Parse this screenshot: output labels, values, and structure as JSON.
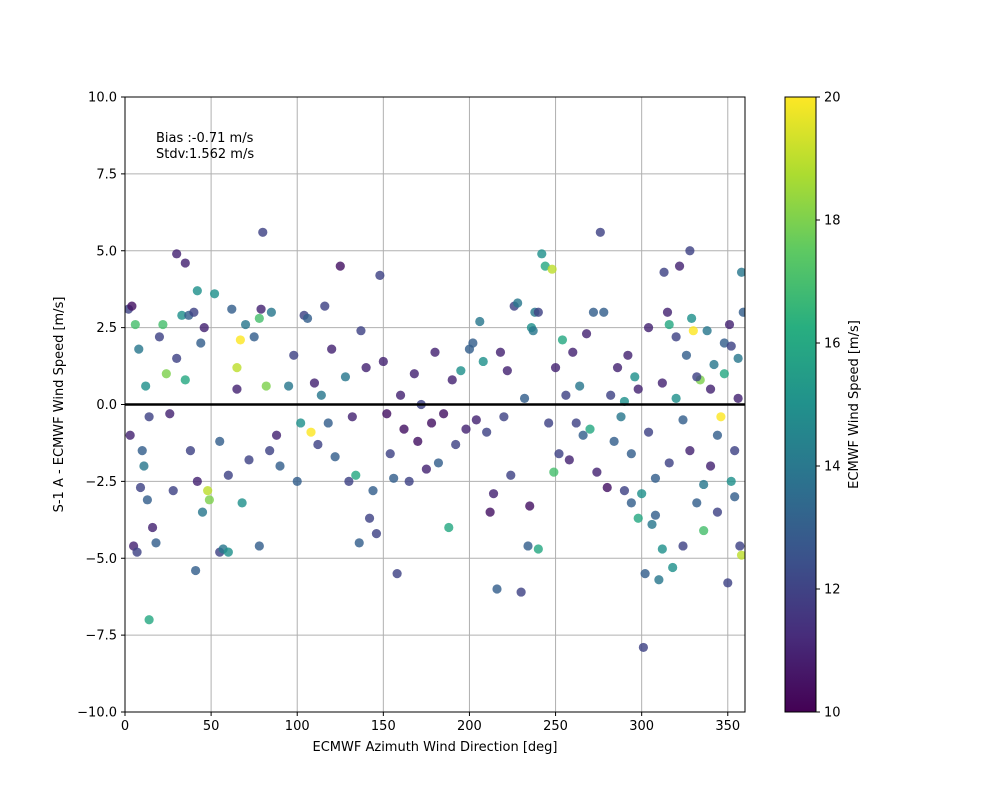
{
  "chart_data": {
    "type": "scatter",
    "title": "",
    "xlabel": "ECMWF Azimuth Wind Direction [deg]",
    "ylabel": "S-1 A - ECMWF Wind Speed [m/s]",
    "xlim": [
      0,
      360
    ],
    "ylim": [
      -10,
      10
    ],
    "grid": true,
    "x_ticks": [
      "0",
      "50",
      "100",
      "150",
      "200",
      "250",
      "300",
      "350"
    ],
    "y_ticks": [
      "10.0",
      "7.5",
      "5.0",
      "2.5",
      "0.0",
      "−2.5",
      "−5.0",
      "−7.5",
      "−10.0"
    ],
    "reference_line": {
      "y": 0,
      "color": "#000000"
    },
    "annotations": {
      "bias": "Bias :-0.71 m/s",
      "stdv": "Stdv:1.562 m/s"
    },
    "colorbar": {
      "label": "ECMWF Wind Speed [m/s]",
      "min": 10,
      "max": 20,
      "ticks": [
        "10",
        "12",
        "14",
        "16",
        "18",
        "20"
      ],
      "colormap": "viridis"
    },
    "points": [
      [
        2,
        3.1,
        12
      ],
      [
        4,
        3.2,
        10.5
      ],
      [
        6,
        2.6,
        17
      ],
      [
        8,
        1.8,
        14
      ],
      [
        5,
        -4.6,
        11
      ],
      [
        7,
        -4.8,
        12
      ],
      [
        10,
        -1.5,
        13
      ],
      [
        12,
        0.6,
        15
      ],
      [
        14,
        -0.4,
        12
      ],
      [
        3,
        -1.0,
        11
      ],
      [
        9,
        -2.7,
        12
      ],
      [
        11,
        -2.0,
        14
      ],
      [
        13,
        -3.1,
        13
      ],
      [
        14,
        -7.0,
        16
      ],
      [
        16,
        -4.0,
        11
      ],
      [
        18,
        -4.5,
        13
      ],
      [
        20,
        2.2,
        12
      ],
      [
        22,
        2.6,
        17
      ],
      [
        24,
        1.0,
        18
      ],
      [
        26,
        -0.3,
        11
      ],
      [
        28,
        -2.8,
        12
      ],
      [
        30,
        4.9,
        11
      ],
      [
        33,
        2.9,
        15
      ],
      [
        35,
        4.6,
        11
      ],
      [
        37,
        2.9,
        13
      ],
      [
        40,
        3.0,
        12
      ],
      [
        41,
        -5.4,
        13
      ],
      [
        42,
        3.7,
        15
      ],
      [
        44,
        2.0,
        13
      ],
      [
        46,
        2.5,
        11
      ],
      [
        48,
        -2.8,
        19
      ],
      [
        49,
        -3.1,
        18
      ],
      [
        52,
        3.6,
        15
      ],
      [
        55,
        -4.8,
        12
      ],
      [
        57,
        -4.7,
        14
      ],
      [
        60,
        -4.8,
        15
      ],
      [
        62,
        3.1,
        13
      ],
      [
        65,
        1.2,
        19
      ],
      [
        67,
        2.1,
        20
      ],
      [
        70,
        2.6,
        14
      ],
      [
        75,
        2.2,
        13
      ],
      [
        78,
        2.8,
        17
      ],
      [
        80,
        5.6,
        12
      ],
      [
        79,
        3.1,
        11
      ],
      [
        82,
        0.6,
        18
      ],
      [
        84,
        -1.5,
        12
      ],
      [
        78,
        -4.6,
        13
      ],
      [
        85,
        3.0,
        14
      ],
      [
        30,
        1.5,
        12
      ],
      [
        35,
        0.8,
        16
      ],
      [
        38,
        -1.5,
        12
      ],
      [
        42,
        -2.5,
        11
      ],
      [
        45,
        -3.5,
        14
      ],
      [
        55,
        -1.2,
        13
      ],
      [
        60,
        -2.3,
        12
      ],
      [
        65,
        0.5,
        11
      ],
      [
        68,
        -3.2,
        15
      ],
      [
        72,
        -1.8,
        12
      ],
      [
        88,
        -1.0,
        11
      ],
      [
        90,
        -2.0,
        13
      ],
      [
        95,
        0.6,
        14
      ],
      [
        98,
        1.6,
        12
      ],
      [
        100,
        -2.5,
        13
      ],
      [
        102,
        -0.6,
        15
      ],
      [
        104,
        2.9,
        12
      ],
      [
        106,
        2.8,
        13
      ],
      [
        108,
        -0.9,
        20
      ],
      [
        110,
        0.7,
        11
      ],
      [
        112,
        -1.3,
        12
      ],
      [
        114,
        0.3,
        14
      ],
      [
        116,
        3.2,
        12
      ],
      [
        118,
        -0.6,
        13
      ],
      [
        120,
        1.8,
        11
      ],
      [
        122,
        -1.7,
        13
      ],
      [
        125,
        4.5,
        10.5
      ],
      [
        128,
        0.9,
        14
      ],
      [
        130,
        -2.5,
        12
      ],
      [
        132,
        -0.4,
        11
      ],
      [
        134,
        -2.3,
        16
      ],
      [
        136,
        -4.5,
        13
      ],
      [
        137,
        2.4,
        12
      ],
      [
        140,
        1.2,
        11
      ],
      [
        142,
        -3.7,
        12
      ],
      [
        144,
        -2.8,
        13
      ],
      [
        146,
        -4.2,
        12
      ],
      [
        148,
        4.2,
        12
      ],
      [
        150,
        1.4,
        11
      ],
      [
        152,
        -0.3,
        10.5
      ],
      [
        154,
        -1.6,
        12
      ],
      [
        156,
        -2.4,
        13
      ],
      [
        158,
        -5.5,
        12
      ],
      [
        160,
        0.3,
        11
      ],
      [
        162,
        -0.8,
        10.5
      ],
      [
        165,
        -2.5,
        12
      ],
      [
        168,
        1.0,
        11
      ],
      [
        170,
        -1.2,
        10.5
      ],
      [
        172,
        0.0,
        12
      ],
      [
        175,
        -2.1,
        11
      ],
      [
        178,
        -0.6,
        10.5
      ],
      [
        180,
        1.7,
        11
      ],
      [
        182,
        -1.9,
        13
      ],
      [
        185,
        -0.3,
        10.5
      ],
      [
        188,
        -4.0,
        16
      ],
      [
        190,
        0.8,
        11
      ],
      [
        192,
        -1.3,
        12
      ],
      [
        195,
        1.1,
        15
      ],
      [
        198,
        -0.8,
        11
      ],
      [
        200,
        1.8,
        13
      ],
      [
        202,
        2.0,
        13
      ],
      [
        204,
        -0.5,
        11
      ],
      [
        206,
        2.7,
        14
      ],
      [
        208,
        1.4,
        15
      ],
      [
        210,
        -0.9,
        12
      ],
      [
        212,
        -3.5,
        10.5
      ],
      [
        214,
        -2.9,
        11
      ],
      [
        216,
        -6.0,
        13
      ],
      [
        218,
        1.7,
        11
      ],
      [
        220,
        -0.4,
        12
      ],
      [
        222,
        1.1,
        11
      ],
      [
        224,
        -2.3,
        12
      ],
      [
        226,
        3.2,
        12
      ],
      [
        228,
        3.3,
        14
      ],
      [
        230,
        -6.1,
        12
      ],
      [
        232,
        0.2,
        13
      ],
      [
        234,
        -4.6,
        13
      ],
      [
        235,
        -3.3,
        10.5
      ],
      [
        236,
        2.5,
        15
      ],
      [
        237,
        2.4,
        14
      ],
      [
        238,
        3.0,
        14
      ],
      [
        240,
        3.0,
        12
      ],
      [
        240,
        -4.7,
        16
      ],
      [
        242,
        4.9,
        15
      ],
      [
        244,
        4.5,
        16
      ],
      [
        246,
        -0.6,
        12
      ],
      [
        248,
        4.4,
        19
      ],
      [
        249,
        -2.2,
        17
      ],
      [
        250,
        1.2,
        11
      ],
      [
        252,
        -1.6,
        12
      ],
      [
        254,
        2.1,
        16
      ],
      [
        256,
        0.3,
        12
      ],
      [
        258,
        -1.8,
        11
      ],
      [
        260,
        1.7,
        11
      ],
      [
        262,
        -0.6,
        12
      ],
      [
        264,
        0.6,
        14
      ],
      [
        266,
        -1.0,
        13
      ],
      [
        268,
        2.3,
        11
      ],
      [
        270,
        -0.8,
        16
      ],
      [
        272,
        3.0,
        13
      ],
      [
        274,
        -2.2,
        11
      ],
      [
        276,
        5.6,
        12
      ],
      [
        278,
        3.0,
        13
      ],
      [
        280,
        -2.7,
        10.5
      ],
      [
        282,
        0.3,
        12
      ],
      [
        284,
        -1.2,
        13
      ],
      [
        286,
        1.2,
        11
      ],
      [
        288,
        -0.4,
        14
      ],
      [
        290,
        -2.8,
        12
      ],
      [
        292,
        1.6,
        11
      ],
      [
        294,
        -3.2,
        13
      ],
      [
        296,
        0.9,
        15
      ],
      [
        298,
        -3.7,
        16
      ],
      [
        300,
        -2.9,
        15
      ],
      [
        301,
        -7.9,
        12
      ],
      [
        302,
        -5.5,
        13
      ],
      [
        304,
        2.5,
        11
      ],
      [
        306,
        -3.9,
        14
      ],
      [
        308,
        -3.6,
        13
      ],
      [
        310,
        -5.7,
        14
      ],
      [
        312,
        -4.7,
        15
      ],
      [
        313,
        4.3,
        12
      ],
      [
        315,
        3.0,
        11
      ],
      [
        316,
        2.6,
        16
      ],
      [
        318,
        -5.3,
        15
      ],
      [
        320,
        2.2,
        12
      ],
      [
        322,
        4.5,
        11
      ],
      [
        324,
        -4.6,
        12
      ],
      [
        326,
        1.6,
        13
      ],
      [
        328,
        5.0,
        12
      ],
      [
        329,
        2.8,
        15
      ],
      [
        330,
        2.4,
        20
      ],
      [
        332,
        -3.2,
        13
      ],
      [
        334,
        0.8,
        18
      ],
      [
        336,
        -4.1,
        17
      ],
      [
        338,
        2.4,
        14
      ],
      [
        340,
        -2.0,
        11
      ],
      [
        342,
        1.3,
        14
      ],
      [
        344,
        -3.5,
        12
      ],
      [
        346,
        -0.4,
        20
      ],
      [
        348,
        2.0,
        13
      ],
      [
        350,
        -5.8,
        12
      ],
      [
        351,
        2.6,
        11
      ],
      [
        352,
        1.9,
        12
      ],
      [
        354,
        -3.0,
        13
      ],
      [
        356,
        1.5,
        14
      ],
      [
        357,
        -4.6,
        12
      ],
      [
        358,
        4.3,
        14
      ],
      [
        359,
        3.0,
        13
      ],
      [
        358,
        -4.9,
        19
      ],
      [
        356,
        0.2,
        11
      ],
      [
        354,
        -1.5,
        12
      ],
      [
        352,
        -2.5,
        15
      ],
      [
        348,
        1.0,
        16
      ],
      [
        344,
        -1.0,
        13
      ],
      [
        340,
        0.5,
        11
      ],
      [
        336,
        -2.6,
        14
      ],
      [
        332,
        0.9,
        12
      ],
      [
        328,
        -1.5,
        11
      ],
      [
        324,
        -0.5,
        13
      ],
      [
        320,
        0.2,
        15
      ],
      [
        316,
        -1.9,
        12
      ],
      [
        312,
        0.7,
        11
      ],
      [
        308,
        -2.4,
        13
      ],
      [
        304,
        -0.9,
        12
      ],
      [
        298,
        0.5,
        11
      ],
      [
        294,
        -1.6,
        13
      ],
      [
        290,
        0.1,
        15
      ]
    ]
  }
}
